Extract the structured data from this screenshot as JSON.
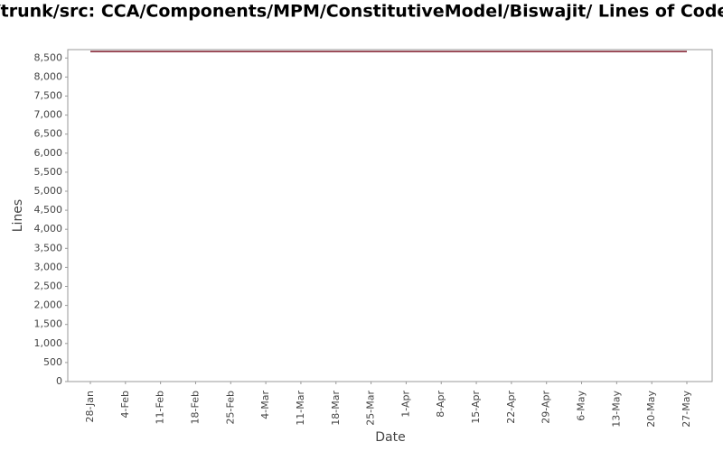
{
  "chart_data": {
    "type": "line",
    "title": "/trunk/src: CCA/Components/MPM/ConstitutiveModel/Biswajit/ Lines of Code",
    "xlabel": "Date",
    "ylabel": "Lines",
    "x": [
      "28-Jan",
      "4-Feb",
      "11-Feb",
      "18-Feb",
      "25-Feb",
      "4-Mar",
      "11-Mar",
      "18-Mar",
      "25-Mar",
      "1-Apr",
      "8-Apr",
      "15-Apr",
      "22-Apr",
      "29-Apr",
      "6-May",
      "13-May",
      "20-May",
      "27-May"
    ],
    "series": [
      {
        "name": "Lines",
        "color": "#7f1a2a",
        "values": [
          8670,
          8670,
          8670,
          8670,
          8670,
          8670,
          8670,
          8670,
          8670,
          8670,
          8670,
          8670,
          8670,
          8670,
          8670,
          8670,
          8670,
          8670
        ]
      }
    ],
    "ylim": [
      0,
      8720
    ],
    "yticks": [
      0,
      500,
      {
        "value": 1000,
        "label": "1,000"
      },
      {
        "value": 1500,
        "label": "1,500"
      },
      {
        "value": 2000,
        "label": "2,000"
      },
      {
        "value": 2500,
        "label": "2,500"
      },
      {
        "value": 3000,
        "label": "3,000"
      },
      {
        "value": 3500,
        "label": "3,500"
      },
      {
        "value": 4000,
        "label": "4,000"
      },
      {
        "value": 4500,
        "label": "4,500"
      },
      {
        "value": 5000,
        "label": "5,000"
      },
      {
        "value": 5500,
        "label": "5,500"
      },
      {
        "value": 6000,
        "label": "6,000"
      },
      {
        "value": 6500,
        "label": "6,500"
      },
      {
        "value": 7000,
        "label": "7,000"
      },
      {
        "value": 7500,
        "label": "7,500"
      },
      {
        "value": 8000,
        "label": "8,000"
      },
      {
        "value": 8500,
        "label": "8,500"
      }
    ]
  }
}
